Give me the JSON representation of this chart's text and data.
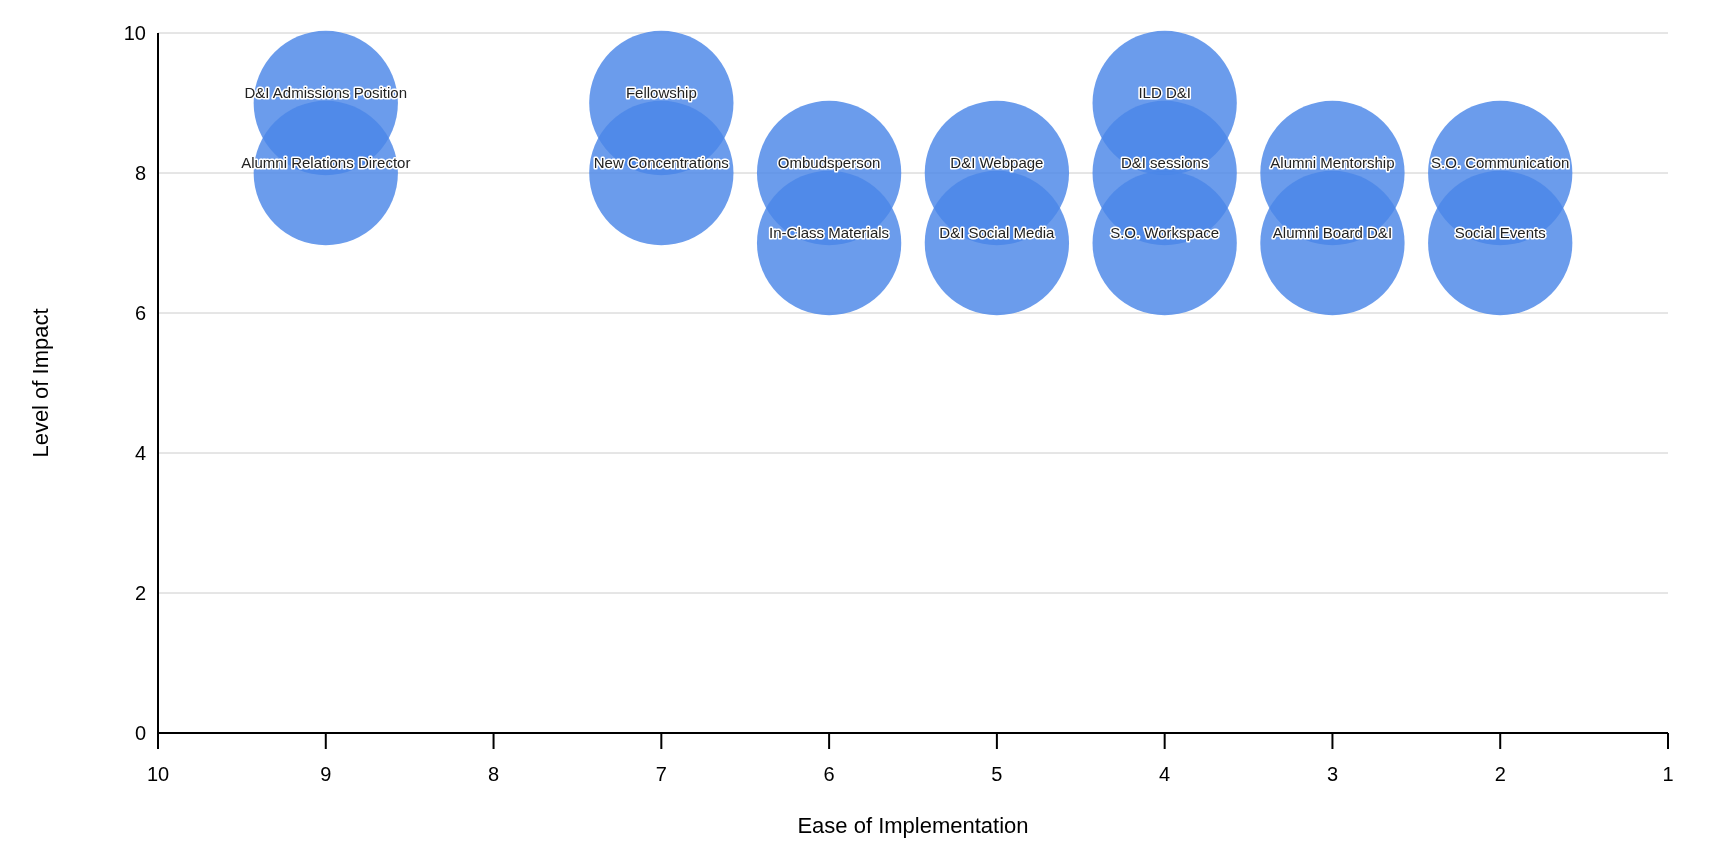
{
  "chart_data": {
    "type": "bubble",
    "xlabel": "Ease of Implementation",
    "ylabel": "Level of Impact",
    "xlim": [
      10,
      1
    ],
    "xticks": [
      10,
      9,
      8,
      7,
      6,
      5,
      4,
      3,
      2,
      1
    ],
    "ylim": [
      0,
      10
    ],
    "yticks": [
      0,
      2,
      4,
      6,
      8,
      10
    ],
    "grid": "y",
    "series": [
      {
        "color": "#4a86e8",
        "x": [
          9,
          9,
          7,
          7,
          6,
          6,
          5,
          5,
          4,
          4,
          4,
          3,
          3,
          2,
          2
        ],
        "values": [
          9,
          8,
          9,
          8,
          8,
          7,
          8,
          7,
          9,
          8,
          7,
          8,
          7,
          8,
          7
        ],
        "sizes": [
          1,
          1,
          1,
          1,
          1,
          1,
          1,
          1,
          1,
          1,
          1,
          1,
          1,
          1,
          1
        ]
      }
    ],
    "annotations": [
      {
        "text": "D&I Admissions Position",
        "x": 9,
        "y": 9
      },
      {
        "text": "Alumni Relations Director",
        "x": 9,
        "y": 8
      },
      {
        "text": "Fellowship",
        "x": 7,
        "y": 9
      },
      {
        "text": "New Concentrations",
        "x": 7,
        "y": 8
      },
      {
        "text": "Ombudsperson",
        "x": 6,
        "y": 8
      },
      {
        "text": "In-Class Materials",
        "x": 6,
        "y": 7
      },
      {
        "text": "D&I Webpage",
        "x": 5,
        "y": 8
      },
      {
        "text": "D&I Social Media",
        "x": 5,
        "y": 7
      },
      {
        "text": "ILD D&I",
        "x": 4,
        "y": 9
      },
      {
        "text": "D&I sessions",
        "x": 4,
        "y": 8
      },
      {
        "text": "S.O. Workspace",
        "x": 4,
        "y": 7
      },
      {
        "text": "Alumni Mentorship",
        "x": 3,
        "y": 8
      },
      {
        "text": "Alumni Board D&I",
        "x": 3,
        "y": 7
      },
      {
        "text": "S.O. Communication",
        "x": 2,
        "y": 8
      },
      {
        "text": "Social Events",
        "x": 2,
        "y": 7
      }
    ]
  }
}
